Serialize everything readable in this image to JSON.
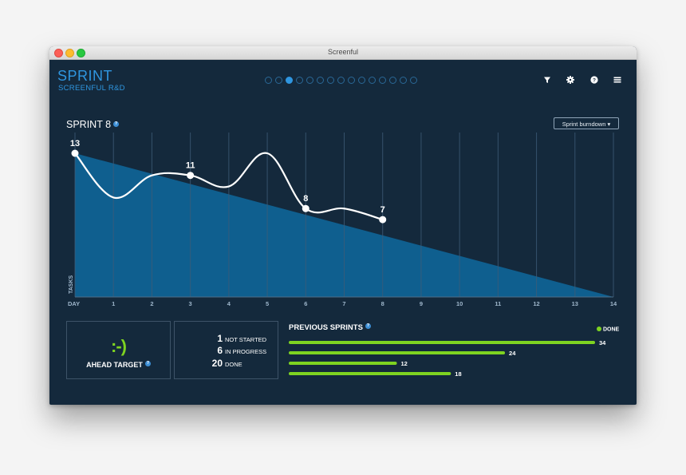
{
  "window": {
    "title": "Screenful"
  },
  "header": {
    "title": "SPRINT",
    "subtitle": "SCREENFUL R&D",
    "pager": {
      "count": 15,
      "active_index": 2
    },
    "icons": [
      "filter-icon",
      "gear-icon",
      "help-icon",
      "menu-icon"
    ]
  },
  "panel": {
    "title": "SPRINT 8",
    "view_select": "Sprint burndown ▾"
  },
  "chart_data": {
    "type": "line",
    "xlabel": "DAY",
    "ylabel": "TASKS",
    "x_ticks": [
      "DAY",
      "1",
      "2",
      "3",
      "4",
      "5",
      "6",
      "7",
      "8",
      "9",
      "10",
      "11",
      "12",
      "13",
      "14"
    ],
    "xlim": [
      0,
      14
    ],
    "ylim": [
      0,
      13
    ],
    "ideal_line": {
      "x": [
        0,
        14
      ],
      "y": [
        13,
        0
      ]
    },
    "series": [
      {
        "x": [
          0,
          1,
          2,
          3,
          4,
          5,
          6,
          7,
          8
        ],
        "y": [
          13,
          9,
          11,
          11,
          10,
          13,
          8,
          8,
          7
        ]
      }
    ],
    "labeled_points": [
      {
        "x": 0,
        "y": 13,
        "label": "13"
      },
      {
        "x": 3,
        "y": 11,
        "label": "11"
      },
      {
        "x": 6,
        "y": 8,
        "label": "8"
      },
      {
        "x": 8,
        "y": 7,
        "label": "7"
      }
    ],
    "colors": {
      "area": "#0f5f8f",
      "line": "#ffffff",
      "grid": "#3e5c77"
    }
  },
  "status": {
    "smiley": ":-)",
    "label": "AHEAD TARGET"
  },
  "counts": [
    {
      "value": "1",
      "label": "NOT STARTED"
    },
    {
      "value": "6",
      "label": "IN PROGRESS"
    },
    {
      "value": "20",
      "label": "DONE"
    }
  ],
  "previous_sprints": {
    "title": "PREVIOUS SPRINTS",
    "legend": "DONE",
    "color": "#7ed321",
    "values": [
      34,
      24,
      12,
      18
    ]
  }
}
